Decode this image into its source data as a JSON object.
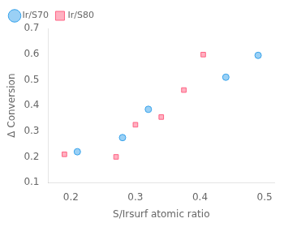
{
  "chart_data": {
    "type": "scatter",
    "xlabel": "S/Irsurf atomic ratio",
    "ylabel": "Δ Conversion",
    "series": [
      {
        "name": "Ir/S70",
        "marker": "circle",
        "x": [
          0.21,
          0.28,
          0.32,
          0.44,
          0.49
        ],
        "values": [
          0.22,
          0.275,
          0.385,
          0.51,
          0.595
        ]
      },
      {
        "name": "Ir/S80",
        "marker": "square",
        "x": [
          0.19,
          0.27,
          0.3,
          0.34,
          0.375,
          0.405
        ],
        "values": [
          0.21,
          0.2,
          0.325,
          0.355,
          0.46,
          0.598
        ]
      }
    ],
    "xlim": [
      0.165,
      0.515
    ],
    "ylim": [
      0.1,
      0.7
    ],
    "xticks": [
      0.2,
      0.3,
      0.4,
      0.5
    ],
    "yticks": [
      0.1,
      0.2,
      0.3,
      0.4,
      0.5,
      0.6,
      0.7
    ],
    "grid": false,
    "legend": "upper left"
  }
}
